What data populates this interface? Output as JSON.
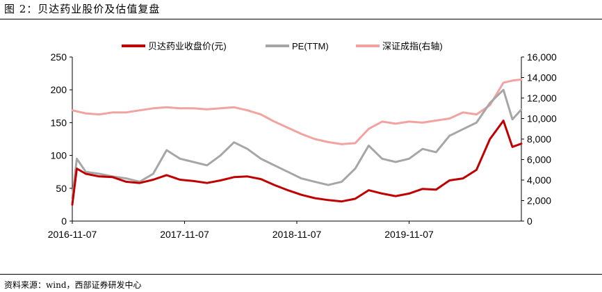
{
  "figure": {
    "title": "图 2：贝达药业股价及估值复盘",
    "source": "资料来源：wind，西部证券研发中心"
  },
  "chart_data": {
    "type": "line",
    "x_tick_labels": [
      "2016-11-07",
      "2017-11-07",
      "2018-11-07",
      "2019-11-07"
    ],
    "y_left": {
      "ticks": [
        0,
        50,
        100,
        150,
        200,
        250
      ],
      "range": [
        0,
        250
      ]
    },
    "y_right": {
      "ticks": [
        "0",
        "2,000",
        "4,000",
        "6,000",
        "8,000",
        "10,000",
        "12,000",
        "14,000",
        "16,000"
      ],
      "range": [
        0,
        16000
      ]
    },
    "colors": {
      "price": "#c00000",
      "pe": "#a6a6a6",
      "index": "#f2a3a0"
    },
    "series": [
      {
        "name": "贝达药业收盘价(元)",
        "axis": "left",
        "x": [
          0,
          1,
          3,
          6,
          9,
          12,
          15,
          18,
          21,
          24,
          27,
          30,
          33,
          36,
          39,
          42,
          45,
          48,
          51,
          54,
          57,
          60,
          63,
          66,
          69,
          72,
          75,
          78,
          81,
          84,
          87,
          90,
          93,
          96,
          98,
          100
        ],
        "values": [
          25,
          80,
          72,
          68,
          67,
          60,
          58,
          63,
          70,
          63,
          61,
          58,
          62,
          67,
          68,
          64,
          55,
          47,
          40,
          35,
          32,
          30,
          34,
          47,
          42,
          38,
          42,
          49,
          48,
          62,
          65,
          78,
          125,
          153,
          113,
          118
        ]
      },
      {
        "name": "PE(TTM)",
        "axis": "left",
        "x": [
          0,
          1,
          3,
          6,
          9,
          12,
          15,
          18,
          21,
          24,
          27,
          30,
          33,
          36,
          39,
          42,
          45,
          48,
          51,
          54,
          57,
          60,
          63,
          66,
          69,
          72,
          75,
          78,
          81,
          84,
          87,
          90,
          93,
          96,
          98,
          100
        ],
        "values": [
          35,
          95,
          75,
          72,
          68,
          65,
          60,
          72,
          108,
          95,
          90,
          85,
          100,
          120,
          110,
          95,
          85,
          75,
          65,
          60,
          55,
          60,
          80,
          115,
          95,
          90,
          95,
          110,
          105,
          130,
          140,
          150,
          180,
          200,
          155,
          170
        ]
      },
      {
        "name": "深证成指(右轴)",
        "axis": "right",
        "x": [
          0,
          3,
          6,
          9,
          12,
          15,
          18,
          21,
          24,
          27,
          30,
          33,
          36,
          39,
          42,
          45,
          48,
          51,
          54,
          57,
          60,
          63,
          66,
          69,
          72,
          75,
          78,
          81,
          84,
          87,
          90,
          93,
          96,
          98,
          100
        ],
        "values": [
          10800,
          10500,
          10400,
          10600,
          10600,
          10800,
          11000,
          11100,
          11000,
          11000,
          10900,
          11000,
          11100,
          10800,
          10400,
          9700,
          9100,
          8500,
          8000,
          7700,
          7500,
          7600,
          9000,
          9700,
          9500,
          9700,
          9600,
          9800,
          10000,
          10600,
          10400,
          11300,
          13500,
          13700,
          13800
        ]
      }
    ]
  }
}
